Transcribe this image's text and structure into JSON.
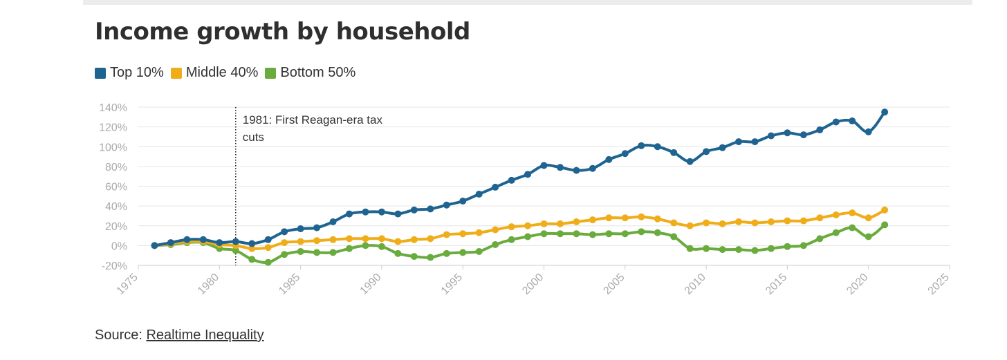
{
  "title": "Income growth by household",
  "legend": [
    {
      "label": "Top 10%",
      "color": "#1f6391"
    },
    {
      "label": "Middle 40%",
      "color": "#f0ad1a"
    },
    {
      "label": "Bottom 50%",
      "color": "#6aab3e"
    }
  ],
  "source": {
    "prefix": "Source: ",
    "link_text": "Realtime Inequality"
  },
  "chart_data": {
    "type": "line",
    "title": "Income growth by household",
    "xlabel": "",
    "ylabel": "",
    "xlim": [
      1975,
      2025
    ],
    "ylim": [
      -20,
      140
    ],
    "x_ticks": [
      "1975",
      "1980",
      "1985",
      "1990",
      "1995",
      "2000",
      "2005",
      "2010",
      "2015",
      "2020",
      "2025"
    ],
    "y_ticks": [
      "140%",
      "120%",
      "100%",
      "80%",
      "60%",
      "40%",
      "20%",
      "0%",
      "-20%"
    ],
    "grid": true,
    "legend_position": "top-left",
    "x": [
      1976,
      1977,
      1978,
      1979,
      1980,
      1981,
      1982,
      1983,
      1984,
      1985,
      1986,
      1987,
      1988,
      1989,
      1990,
      1991,
      1992,
      1993,
      1994,
      1995,
      1996,
      1997,
      1998,
      1999,
      2000,
      2001,
      2002,
      2003,
      2004,
      2005,
      2006,
      2007,
      2008,
      2009,
      2010,
      2011,
      2012,
      2013,
      2014,
      2015,
      2016,
      2017,
      2018,
      2019,
      2020,
      2021
    ],
    "series": [
      {
        "name": "Top 10%",
        "color": "#1f6391",
        "values": [
          0,
          3,
          6,
          6,
          3,
          4,
          2,
          6,
          14,
          17,
          18,
          24,
          32,
          34,
          34,
          32,
          36,
          37,
          41,
          45,
          52,
          59,
          66,
          72,
          81,
          79,
          76,
          78,
          87,
          93,
          101,
          100,
          94,
          85,
          95,
          99,
          105,
          105,
          111,
          114,
          112,
          117,
          125,
          126,
          115,
          135
        ]
      },
      {
        "name": "Middle 40%",
        "color": "#f0ad1a",
        "values": [
          0,
          2,
          4,
          4,
          1,
          0,
          -3,
          -2,
          3,
          4,
          5,
          6,
          7,
          7,
          7,
          4,
          6,
          7,
          11,
          12,
          13,
          16,
          19,
          20,
          22,
          22,
          24,
          26,
          28,
          28,
          29,
          27,
          23,
          20,
          23,
          22,
          24,
          23,
          24,
          25,
          25,
          28,
          31,
          33,
          28,
          36
        ]
      },
      {
        "name": "Bottom 50%",
        "color": "#6aab3e",
        "values": [
          0,
          1,
          3,
          3,
          -3,
          -5,
          -14,
          -17,
          -9,
          -6,
          -7,
          -7,
          -3,
          0,
          -1,
          -8,
          -11,
          -12,
          -8,
          -7,
          -6,
          1,
          6,
          9,
          12,
          12,
          12,
          11,
          12,
          12,
          14,
          13,
          9,
          -3,
          -3,
          -4,
          -4,
          -5,
          -3,
          -1,
          0,
          7,
          13,
          18,
          9,
          21
        ]
      }
    ],
    "annotations": [
      {
        "x": 1981,
        "lines": [
          "1981: First Reagan-era tax",
          "cuts"
        ]
      }
    ]
  }
}
